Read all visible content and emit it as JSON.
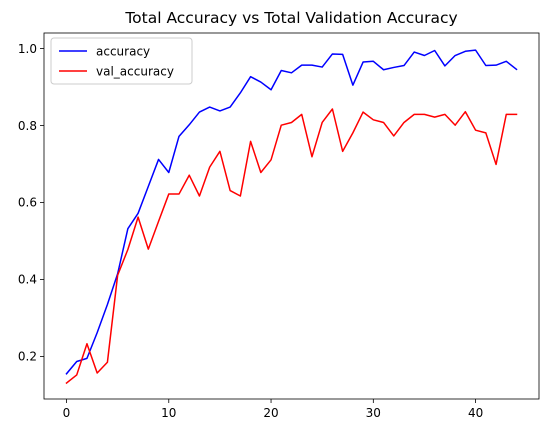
{
  "chart_data": {
    "type": "line",
    "title": "Total Accuracy vs Total Validation Accuracy",
    "xlabel": "",
    "ylabel": "",
    "xlim": [
      -2.2,
      46.2
    ],
    "ylim": [
      0.0895,
      1.0405
    ],
    "xticks": [
      0,
      10,
      20,
      30,
      40
    ],
    "yticks": [
      0.2,
      0.4,
      0.6,
      0.8,
      1.0
    ],
    "ytick_labels": [
      "0.2",
      "0.4",
      "0.6",
      "0.8",
      "1.0"
    ],
    "grid": false,
    "legend": "upper-left",
    "x": [
      0,
      1,
      2,
      3,
      4,
      5,
      6,
      7,
      8,
      9,
      10,
      11,
      12,
      13,
      14,
      15,
      16,
      17,
      18,
      19,
      20,
      21,
      22,
      23,
      24,
      25,
      26,
      27,
      28,
      29,
      30,
      31,
      32,
      33,
      34,
      35,
      36,
      37,
      38,
      39,
      40,
      41,
      42,
      43,
      44
    ],
    "series": [
      {
        "name": "accuracy",
        "color": "#0000ff",
        "values": [
          0.155,
          0.187,
          0.195,
          0.262,
          0.335,
          0.415,
          0.532,
          0.572,
          0.642,
          0.712,
          0.678,
          0.772,
          0.802,
          0.835,
          0.848,
          0.838,
          0.848,
          0.885,
          0.927,
          0.913,
          0.893,
          0.943,
          0.937,
          0.957,
          0.957,
          0.952,
          0.986,
          0.985,
          0.905,
          0.965,
          0.967,
          0.945,
          0.951,
          0.956,
          0.991,
          0.982,
          0.995,
          0.955,
          0.982,
          0.993,
          0.996,
          0.956,
          0.957,
          0.967,
          0.946
        ]
      },
      {
        "name": "val_accuracy",
        "color": "#ff0000",
        "values": [
          0.131,
          0.152,
          0.233,
          0.157,
          0.185,
          0.411,
          0.478,
          0.562,
          0.479,
          0.551,
          0.622,
          0.622,
          0.671,
          0.617,
          0.692,
          0.733,
          0.631,
          0.617,
          0.759,
          0.678,
          0.711,
          0.801,
          0.808,
          0.829,
          0.719,
          0.808,
          0.843,
          0.733,
          0.781,
          0.835,
          0.815,
          0.808,
          0.773,
          0.808,
          0.829,
          0.829,
          0.822,
          0.829,
          0.801,
          0.836,
          0.788,
          0.781,
          0.699,
          0.829,
          0.829
        ]
      }
    ]
  }
}
